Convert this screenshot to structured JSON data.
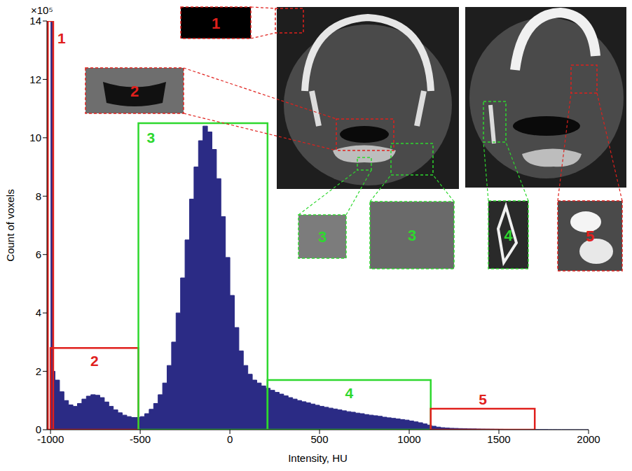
{
  "chart_data": {
    "type": "histogram",
    "x_label": "Intensity, HU",
    "y_label": "Count of voxels",
    "y_multiplier": "×10⁵",
    "color": "#2b2b85",
    "bins": [
      -1000,
      -990,
      -975,
      -950,
      -925,
      -900,
      -875,
      -850,
      -825,
      -800,
      -775,
      -750,
      -725,
      -700,
      -675,
      -650,
      -625,
      -600,
      -575,
      -550,
      -525,
      -500,
      -475,
      -450,
      -425,
      -400,
      -375,
      -350,
      -325,
      -300,
      -275,
      -250,
      -225,
      -200,
      -175,
      -150,
      -125,
      -100,
      -75,
      -50,
      -25,
      0,
      25,
      50,
      75,
      100,
      125,
      150,
      175,
      200,
      225,
      250,
      275,
      300,
      325,
      350,
      375,
      400,
      425,
      450,
      475,
      500,
      525,
      550,
      575,
      600,
      625,
      650,
      675,
      700,
      725,
      750,
      775,
      800,
      825,
      850,
      875,
      900,
      925,
      950,
      975,
      1000,
      1025,
      1050,
      1075,
      1100,
      1125,
      1150,
      1175,
      1200,
      1225,
      1250,
      1275,
      1300,
      1325,
      1350,
      1375,
      1400,
      1425,
      1450,
      1475,
      1500,
      1525,
      1550,
      1575,
      1600,
      1625,
      1650,
      1675,
      1700,
      1725,
      1750,
      1775,
      1800,
      1825,
      1850,
      1875,
      1900,
      1925,
      1950,
      1975,
      2000
    ],
    "counts": [
      14,
      2.0,
      1.7,
      1.3,
      1.0,
      0.85,
      0.8,
      0.9,
      1.05,
      1.15,
      1.2,
      1.18,
      1.1,
      0.95,
      0.8,
      0.68,
      0.58,
      0.5,
      0.45,
      0.42,
      0.42,
      0.45,
      0.55,
      0.7,
      0.9,
      1.2,
      1.6,
      2.2,
      3.0,
      4.0,
      5.2,
      6.5,
      7.9,
      9.0,
      9.9,
      10.4,
      10.2,
      9.6,
      8.6,
      7.3,
      5.9,
      4.6,
      3.5,
      2.7,
      2.2,
      1.9,
      1.7,
      1.6,
      1.5,
      1.42,
      1.35,
      1.28,
      1.22,
      1.16,
      1.1,
      1.05,
      1.0,
      0.96,
      0.92,
      0.88,
      0.84,
      0.8,
      0.77,
      0.74,
      0.71,
      0.68,
      0.65,
      0.62,
      0.6,
      0.57,
      0.55,
      0.52,
      0.5,
      0.48,
      0.46,
      0.43,
      0.41,
      0.39,
      0.37,
      0.35,
      0.33,
      0.3,
      0.27,
      0.24,
      0.2,
      0.16,
      0.12,
      0.09,
      0.07,
      0.06,
      0.05,
      0.045,
      0.04,
      0.035,
      0.03,
      0.028,
      0.025,
      0.022,
      0.02,
      0.018,
      0.016,
      0.014,
      0.012,
      0.011,
      0.01,
      0.009,
      0.008,
      0.007,
      0.006,
      0.005,
      0.004,
      0.004,
      0.003,
      0.003,
      0.002,
      0.002,
      0.002,
      0.001,
      0.001,
      0.001,
      0.001
    ],
    "xlim": [
      -1020,
      2000
    ],
    "ylim": [
      0,
      14
    ],
    "xticks": [
      -1000,
      -500,
      0,
      500,
      1000,
      1500,
      2000
    ],
    "yticks": [
      0,
      2,
      4,
      6,
      8,
      10,
      12,
      14
    ],
    "grid": false,
    "regions": [
      {
        "label": "1",
        "x": [
          -1015,
          -985
        ],
        "height": 14,
        "color": "#e0201c"
      },
      {
        "label": "2",
        "x": [
          -1000,
          -510
        ],
        "height": 2.8,
        "color": "#e0201c"
      },
      {
        "label": "3",
        "x": [
          -510,
          210
        ],
        "height": 10.5,
        "color": "#2ed82e"
      },
      {
        "label": "4",
        "x": [
          210,
          1120
        ],
        "height": 1.7,
        "color": "#2ed82e"
      },
      {
        "label": "5",
        "x": [
          1120,
          1700
        ],
        "height": 0.72,
        "color": "#e0201c"
      }
    ]
  }
}
